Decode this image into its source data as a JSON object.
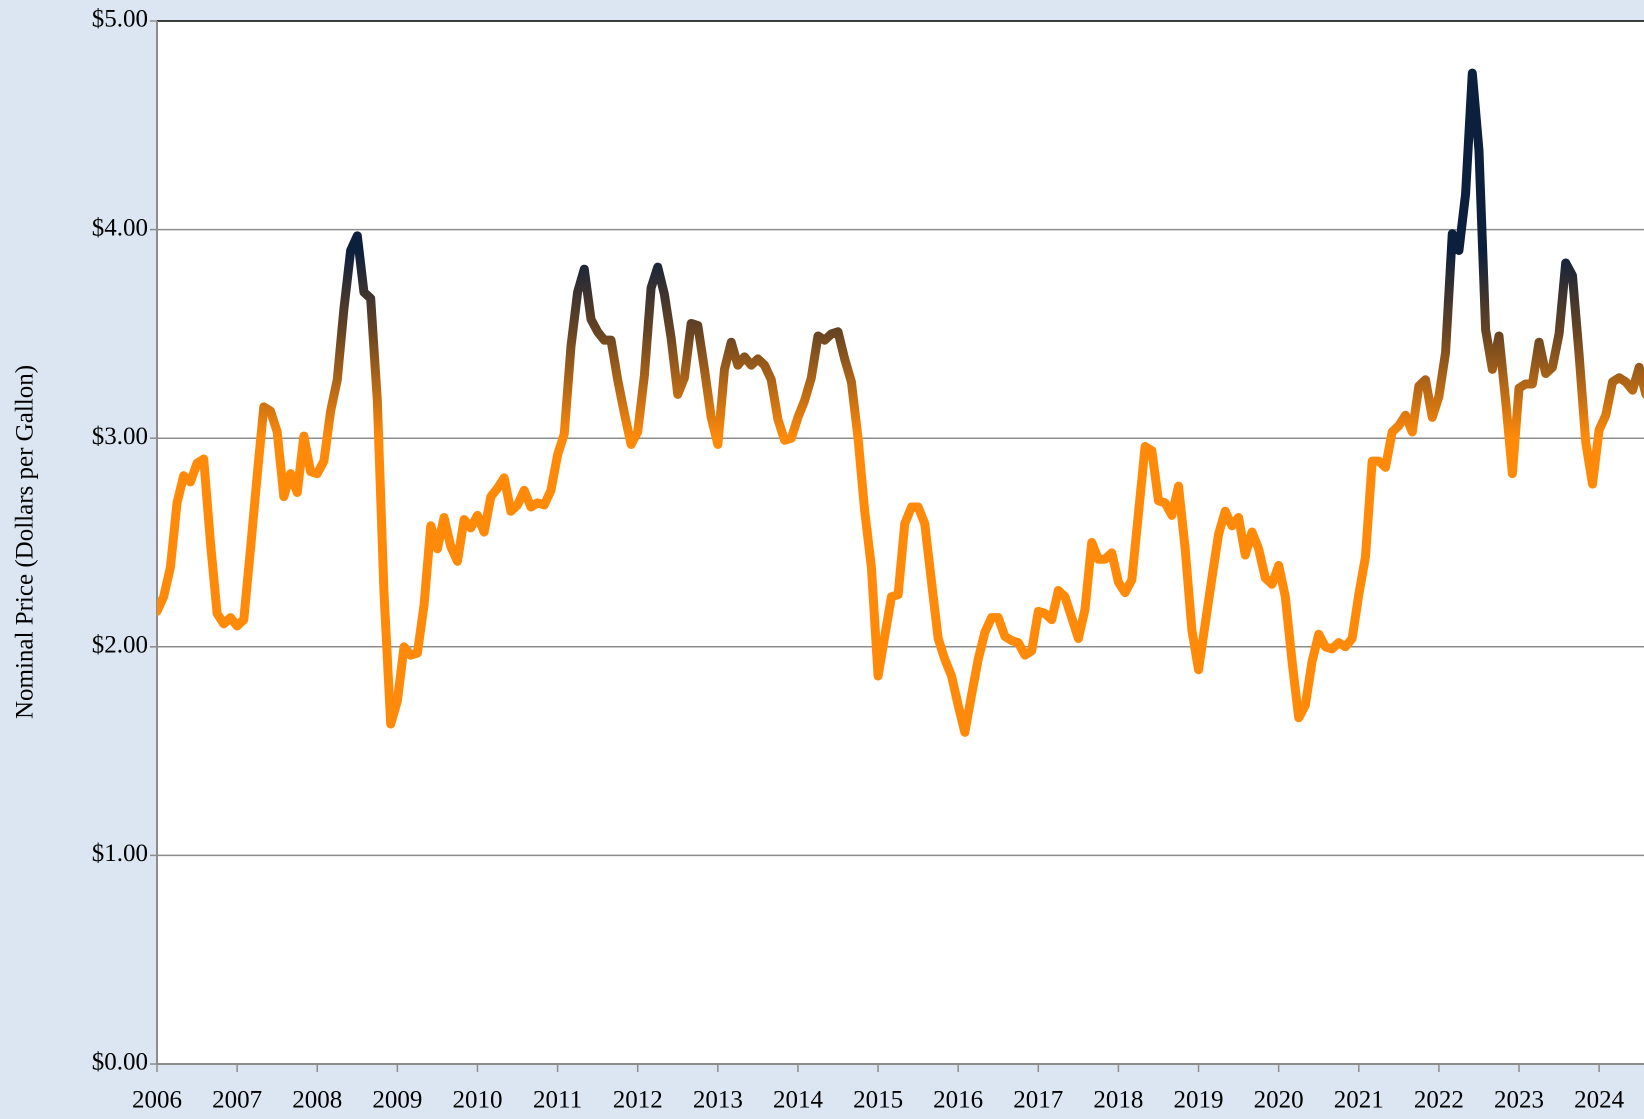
{
  "chart_data": {
    "type": "line",
    "ylabel": "Nominal Price (Dollars per Gallon)",
    "xlim": [
      2006,
      2024.56
    ],
    "xticks": [
      2006,
      2007,
      2008,
      2009,
      2010,
      2011,
      2012,
      2013,
      2014,
      2015,
      2016,
      2017,
      2018,
      2019,
      2020,
      2021,
      2022,
      2023,
      2024
    ],
    "ylim": [
      0,
      5
    ],
    "yticks": [
      {
        "value": 0,
        "label": "$0.00"
      },
      {
        "value": 1,
        "label": "$1.00"
      },
      {
        "value": 2,
        "label": "$2.00"
      },
      {
        "value": 3,
        "label": "$3.00"
      },
      {
        "value": 4,
        "label": "$4.00"
      },
      {
        "value": 5,
        "label": "$5.00"
      }
    ],
    "grid": true,
    "color_stops": [
      {
        "value": 3.0,
        "color": "#ff8a0a"
      },
      {
        "value": 3.5,
        "color": "#6a4522"
      },
      {
        "value": 3.9,
        "color": "#0c1f3d"
      }
    ],
    "series": [
      {
        "x": [
          2006,
          2006.083,
          2006.167,
          2006.25,
          2006.333,
          2006.417,
          2006.5,
          2006.583,
          2006.667,
          2006.75,
          2006.833,
          2006.917,
          2007,
          2007.083,
          2007.167,
          2007.25,
          2007.333,
          2007.417,
          2007.5,
          2007.583,
          2007.667,
          2007.75,
          2007.833,
          2007.917,
          2008,
          2008.083,
          2008.167,
          2008.25,
          2008.333,
          2008.417,
          2008.5,
          2008.583,
          2008.667,
          2008.75,
          2008.833,
          2008.917,
          2009,
          2009.083,
          2009.167,
          2009.25,
          2009.333,
          2009.417,
          2009.5,
          2009.583,
          2009.667,
          2009.75,
          2009.833,
          2009.917,
          2010,
          2010.083,
          2010.167,
          2010.25,
          2010.333,
          2010.417,
          2010.5,
          2010.583,
          2010.667,
          2010.75,
          2010.833,
          2010.917,
          2011,
          2011.083,
          2011.167,
          2011.25,
          2011.333,
          2011.417,
          2011.5,
          2011.583,
          2011.667,
          2011.75,
          2011.833,
          2011.917,
          2012,
          2012.083,
          2012.167,
          2012.25,
          2012.333,
          2012.417,
          2012.5,
          2012.583,
          2012.667,
          2012.75,
          2012.833,
          2012.917,
          2013,
          2013.083,
          2013.167,
          2013.25,
          2013.333,
          2013.417,
          2013.5,
          2013.583,
          2013.667,
          2013.75,
          2013.833,
          2013.917,
          2014,
          2014.083,
          2014.167,
          2014.25,
          2014.333,
          2014.417,
          2014.5,
          2014.583,
          2014.667,
          2014.75,
          2014.833,
          2014.917,
          2015,
          2015.083,
          2015.167,
          2015.25,
          2015.333,
          2015.417,
          2015.5,
          2015.583,
          2015.667,
          2015.75,
          2015.833,
          2015.917,
          2016,
          2016.083,
          2016.167,
          2016.25,
          2016.333,
          2016.417,
          2016.5,
          2016.583,
          2016.667,
          2016.75,
          2016.833,
          2016.917,
          2017,
          2017.083,
          2017.167,
          2017.25,
          2017.333,
          2017.417,
          2017.5,
          2017.583,
          2017.667,
          2017.75,
          2017.833,
          2017.917,
          2018,
          2018.083,
          2018.167,
          2018.25,
          2018.333,
          2018.417,
          2018.5,
          2018.583,
          2018.667,
          2018.75,
          2018.833,
          2018.917,
          2019,
          2019.083,
          2019.167,
          2019.25,
          2019.333,
          2019.417,
          2019.5,
          2019.583,
          2019.667,
          2019.75,
          2019.833,
          2019.917,
          2020,
          2020.083,
          2020.167,
          2020.25,
          2020.333,
          2020.417,
          2020.5,
          2020.583,
          2020.667,
          2020.75,
          2020.833,
          2020.917,
          2021,
          2021.083,
          2021.167,
          2021.25,
          2021.333,
          2021.417,
          2021.5,
          2021.583,
          2021.667,
          2021.75,
          2021.833,
          2021.917,
          2022,
          2022.083,
          2022.167,
          2022.25,
          2022.333,
          2022.417,
          2022.5,
          2022.583,
          2022.667,
          2022.75,
          2022.833,
          2022.917,
          2023,
          2023.083,
          2023.167,
          2023.25,
          2023.333,
          2023.417,
          2023.5,
          2023.583,
          2023.667,
          2023.75,
          2023.833,
          2023.917,
          2024,
          2024.083,
          2024.167,
          2024.25,
          2024.333,
          2024.417,
          2024.5,
          2024.583
        ],
        "values": [
          2.17,
          2.24,
          2.38,
          2.69,
          2.82,
          2.79,
          2.88,
          2.9,
          2.5,
          2.16,
          2.11,
          2.14,
          2.1,
          2.13,
          2.47,
          2.82,
          3.15,
          3.13,
          3.03,
          2.72,
          2.83,
          2.74,
          3.01,
          2.84,
          2.83,
          2.89,
          3.13,
          3.28,
          3.62,
          3.9,
          3.97,
          3.7,
          3.67,
          3.18,
          2.26,
          1.63,
          1.74,
          2.0,
          1.96,
          1.97,
          2.2,
          2.58,
          2.47,
          2.62,
          2.48,
          2.41,
          2.61,
          2.57,
          2.63,
          2.55,
          2.72,
          2.76,
          2.81,
          2.65,
          2.68,
          2.75,
          2.67,
          2.69,
          2.68,
          2.75,
          2.92,
          3.02,
          3.44,
          3.7,
          3.81,
          3.57,
          3.51,
          3.47,
          3.47,
          3.28,
          3.12,
          2.97,
          3.03,
          3.3,
          3.72,
          3.82,
          3.69,
          3.48,
          3.21,
          3.29,
          3.55,
          3.54,
          3.33,
          3.1,
          2.97,
          3.33,
          3.46,
          3.35,
          3.39,
          3.35,
          3.38,
          3.35,
          3.28,
          3.09,
          2.99,
          3.0,
          3.1,
          3.18,
          3.29,
          3.49,
          3.47,
          3.5,
          3.51,
          3.38,
          3.27,
          3.0,
          2.65,
          2.38,
          1.86,
          2.05,
          2.24,
          2.25,
          2.59,
          2.67,
          2.67,
          2.59,
          2.31,
          2.04,
          1.94,
          1.86,
          1.72,
          1.59,
          1.77,
          1.94,
          2.07,
          2.14,
          2.14,
          2.05,
          2.03,
          2.02,
          1.96,
          1.98,
          2.17,
          2.16,
          2.13,
          2.27,
          2.24,
          2.14,
          2.04,
          2.18,
          2.5,
          2.42,
          2.42,
          2.45,
          2.31,
          2.26,
          2.32,
          2.64,
          2.96,
          2.94,
          2.7,
          2.69,
          2.63,
          2.77,
          2.47,
          2.08,
          1.89,
          2.11,
          2.33,
          2.54,
          2.65,
          2.58,
          2.62,
          2.44,
          2.55,
          2.47,
          2.33,
          2.3,
          2.39,
          2.24,
          1.93,
          1.66,
          1.72,
          1.93,
          2.06,
          2.0,
          1.99,
          2.02,
          2.0,
          2.04,
          2.25,
          2.43,
          2.89,
          2.89,
          2.86,
          3.03,
          3.06,
          3.11,
          3.03,
          3.25,
          3.28,
          3.1,
          3.2,
          3.41,
          3.98,
          3.9,
          4.17,
          4.75,
          4.38,
          3.52,
          3.33,
          3.49,
          3.18,
          2.83,
          3.24,
          3.26,
          3.26,
          3.46,
          3.31,
          3.34,
          3.5,
          3.84,
          3.78,
          3.4,
          2.98,
          2.78,
          3.04,
          3.11,
          3.27,
          3.29,
          3.27,
          3.23,
          3.34,
          3.21
        ]
      }
    ]
  }
}
